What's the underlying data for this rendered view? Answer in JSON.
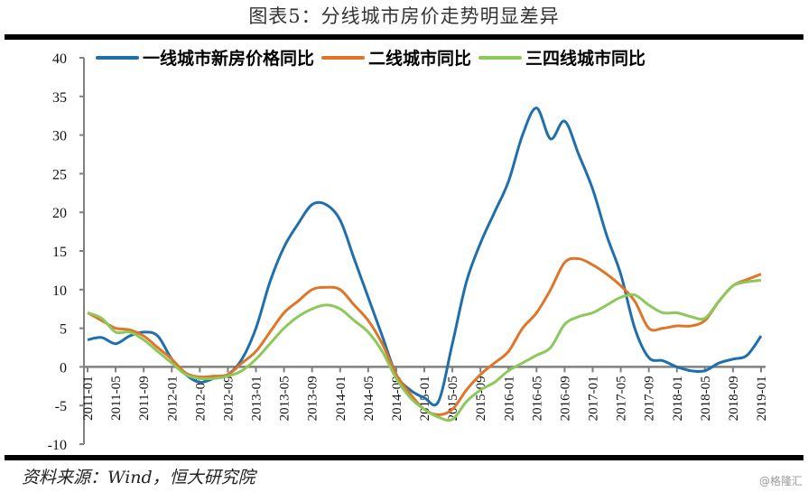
{
  "title": "图表5：分线城市房价走势明显差异",
  "source": "资料来源：Wind，恒大研究院",
  "watermark": "@格隆汇",
  "chart_data": {
    "type": "line",
    "title": "图表5：分线城市房价走势明显差异",
    "xlabel": "",
    "ylabel": "",
    "ylim": [
      -10,
      40
    ],
    "yticks": [
      "40",
      "35",
      "30",
      "25",
      "20",
      "15",
      "10",
      "5",
      "0",
      "-5",
      "-10"
    ],
    "ytick_values": [
      40,
      35,
      30,
      25,
      20,
      15,
      10,
      5,
      0,
      -5,
      -10
    ],
    "grid": false,
    "legend": "top",
    "xticks": [
      "2011-01",
      "2011-05",
      "2011-09",
      "2012-01",
      "2012-05",
      "2012-09",
      "2013-01",
      "2013-05",
      "2013-09",
      "2014-01",
      "2014-05",
      "2014-09",
      "2015-01",
      "2015-05",
      "2015-09",
      "2016-01",
      "2016-05",
      "2016-09",
      "2017-01",
      "2017-05",
      "2017-09",
      "2018-01",
      "2018-05",
      "2018-09",
      "2019-01"
    ],
    "x": [
      "2011-01",
      "2011-03",
      "2011-05",
      "2011-07",
      "2011-09",
      "2011-11",
      "2012-01",
      "2012-03",
      "2012-05",
      "2012-07",
      "2012-09",
      "2012-11",
      "2013-01",
      "2013-03",
      "2013-05",
      "2013-07",
      "2013-09",
      "2013-11",
      "2014-01",
      "2014-03",
      "2014-05",
      "2014-07",
      "2014-09",
      "2014-11",
      "2015-01",
      "2015-03",
      "2015-05",
      "2015-07",
      "2015-09",
      "2015-11",
      "2016-01",
      "2016-03",
      "2016-05",
      "2016-07",
      "2016-09",
      "2016-11",
      "2017-01",
      "2017-03",
      "2017-05",
      "2017-07",
      "2017-09",
      "2017-11",
      "2018-01",
      "2018-03",
      "2018-05",
      "2018-07",
      "2018-09",
      "2018-11",
      "2019-01"
    ],
    "series": [
      {
        "name": "一线城市新房价格同比",
        "color": "#1f6fad",
        "values": [
          3.5,
          3.8,
          3,
          4,
          4.5,
          4,
          1,
          -1,
          -2,
          -1.5,
          -1,
          1,
          5,
          11,
          15.5,
          18.5,
          21,
          21,
          19,
          14,
          9,
          4,
          -1,
          -3,
          -4,
          -4.5,
          3,
          11,
          16,
          20,
          24,
          30,
          33.5,
          29.5,
          31.8,
          27.5,
          23,
          17,
          12,
          5,
          1.2,
          0.8,
          0,
          -0.5,
          -0.5,
          0.5,
          1,
          1.5,
          4
        ]
      },
      {
        "name": "二线城市同比",
        "color": "#e07528",
        "values": [
          7,
          6,
          5,
          4.8,
          4,
          2.5,
          1,
          -0.8,
          -1.3,
          -1.2,
          -1,
          0.5,
          2,
          4.5,
          7,
          8.5,
          10,
          10.3,
          10,
          8,
          6,
          3,
          -1,
          -3.5,
          -5.5,
          -6.2,
          -5.5,
          -3,
          -1,
          0.5,
          2,
          5,
          7,
          10,
          13.5,
          14,
          13.2,
          12,
          10.5,
          8.5,
          5,
          5,
          5.3,
          5.3,
          6,
          8.5,
          10.5,
          11.3,
          12
        ]
      },
      {
        "name": "三四线城市同比",
        "color": "#8cc95a",
        "values": [
          7,
          6.3,
          4.5,
          4.5,
          3.5,
          2,
          0.5,
          -1,
          -1.5,
          -1.5,
          -1.2,
          -0.5,
          1,
          3,
          5,
          6.5,
          7.5,
          8,
          7.5,
          6,
          4.5,
          2,
          -1.5,
          -4,
          -5.5,
          -6.5,
          -6.8,
          -4.5,
          -3,
          -2,
          -0.5,
          0.5,
          1.5,
          2.5,
          5.5,
          6.5,
          7,
          8,
          9,
          9.3,
          8,
          7,
          7,
          6.5,
          6.3,
          8.5,
          10.5,
          11,
          11.2
        ]
      }
    ]
  }
}
